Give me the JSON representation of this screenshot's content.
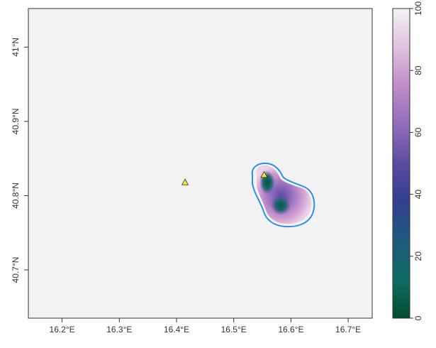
{
  "map": {
    "xticks": [
      {
        "value": 16.2,
        "label": "16.2°E"
      },
      {
        "value": 16.3,
        "label": "16.3°E"
      },
      {
        "value": 16.4,
        "label": "16.4°E"
      },
      {
        "value": 16.5,
        "label": "16.5°E"
      },
      {
        "value": 16.6,
        "label": "16.6°E"
      },
      {
        "value": 16.7,
        "label": "16.7°E"
      }
    ],
    "yticks": [
      {
        "value": 40.7,
        "label": "40.7°N"
      },
      {
        "value": 40.8,
        "label": "40.8°N"
      },
      {
        "value": 40.9,
        "label": "40.9°N"
      },
      {
        "value": 41.0,
        "label": "41°N"
      }
    ],
    "xlim": [
      16.141,
      16.742
    ],
    "ylim": [
      40.635,
      41.052
    ],
    "background_color": "#f2f2f2",
    "contour_color": "#2f8fe8",
    "triangle_color": "#f5e63a",
    "points": [
      {
        "lon": 16.415,
        "lat": 40.818
      },
      {
        "lon": 16.553,
        "lat": 40.828
      }
    ]
  },
  "legend": {
    "ticks": [
      {
        "value": 0,
        "label": "0"
      },
      {
        "value": 20,
        "label": "20"
      },
      {
        "value": 40,
        "label": "40"
      },
      {
        "value": 60,
        "label": "60"
      },
      {
        "value": 80,
        "label": "80"
      },
      {
        "value": 100,
        "label": "100"
      }
    ],
    "range": [
      0,
      100
    ],
    "colors": [
      "#004d2e",
      "#0f6b62",
      "#2a4f8e",
      "#4a3c93",
      "#7a5fb0",
      "#b07ac4",
      "#d7a3d6",
      "#eadbe9",
      "#f2f2f2"
    ]
  }
}
